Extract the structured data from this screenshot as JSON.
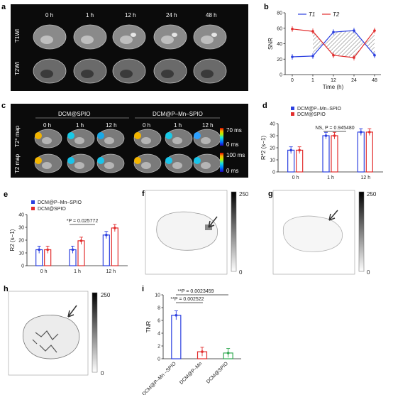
{
  "panels": {
    "a": "a",
    "b": "b",
    "c": "c",
    "d": "d",
    "e": "e",
    "f": "f",
    "g": "g",
    "h": "h",
    "i": "i"
  },
  "panel_a": {
    "times": [
      "0 h",
      "1 h",
      "12 h",
      "24 h",
      "48 h"
    ],
    "row1": "T1WI",
    "row2": "T2WI"
  },
  "panel_c": {
    "group1": "DCM@SPIO",
    "group2": "DCM@P–Mn–SPIO",
    "times": [
      "0 h",
      "1 h",
      "12 h",
      "0 h",
      "1 h",
      "12 h"
    ],
    "row1": "T2* map",
    "row2": "T2 map",
    "scale1_top": "70 ms",
    "scale1_bottom": "0 ms",
    "scale2_top": "100 ms",
    "scale2_bottom": "0 ms"
  },
  "scale_fgh": {
    "top": "250",
    "bottom": "0"
  },
  "colors": {
    "blue": "#2b3fe0",
    "red": "#e22d2d",
    "green": "#2fa84f"
  },
  "chart_data": [
    {
      "id": "b",
      "type": "line",
      "x": [
        0,
        1,
        12,
        24,
        48
      ],
      "xlabel": "Time (h)",
      "ylabel": "SNR",
      "ylim": [
        0,
        80
      ],
      "yticks": [
        0,
        20,
        40,
        60,
        80
      ],
      "series": [
        {
          "name": "T1",
          "color": "#2b3fe0",
          "values": [
            23,
            24,
            55,
            57,
            25
          ]
        },
        {
          "name": "T2",
          "color": "#e22d2d",
          "values": [
            59,
            56,
            25,
            22,
            57
          ]
        }
      ],
      "legend": "top"
    },
    {
      "id": "d",
      "type": "bar",
      "categories": [
        "0 h",
        "1 h",
        "12 h"
      ],
      "ylabel": "R*2 (s−1)",
      "ylim": [
        0,
        40
      ],
      "yticks": [
        0,
        10,
        20,
        30,
        40
      ],
      "series": [
        {
          "name": "DCM@P–Mn–SPIO",
          "color": "#2b3fe0",
          "values": [
            18,
            30,
            33
          ]
        },
        {
          "name": "DCM@SPIO",
          "color": "#e22d2d",
          "values": [
            18,
            30,
            33
          ]
        }
      ],
      "annotation": "NS, P = 0.945480"
    },
    {
      "id": "e",
      "type": "bar",
      "categories": [
        "0 h",
        "1 h",
        "12 h"
      ],
      "ylabel": "R2 (s−1)",
      "ylim": [
        0,
        40
      ],
      "yticks": [
        0,
        10,
        20,
        30,
        40
      ],
      "series": [
        {
          "name": "DCM@P–Mn–SPIO",
          "color": "#2b3fe0",
          "values": [
            12.5,
            12.5,
            24
          ]
        },
        {
          "name": "DCM@SPIO",
          "color": "#e22d2d",
          "values": [
            12.5,
            19.5,
            29.5
          ]
        }
      ],
      "annotation": "*P = 0.025772"
    },
    {
      "id": "i",
      "type": "bar",
      "categories": [
        "DCM@P–Mn –SPIO",
        "DCM@P–Mn",
        "DCM@SPIO"
      ],
      "ylabel": "TNR",
      "ylim": [
        0,
        10
      ],
      "yticks": [
        0,
        2,
        4,
        6,
        8,
        10
      ],
      "series": [
        {
          "name": "TNR",
          "colors": [
            "#2b3fe0",
            "#e22d2d",
            "#2fa84f"
          ],
          "values": [
            6.8,
            1.1,
            0.9
          ]
        }
      ],
      "annotations": [
        "**P = 0.0023459",
        "**P = 0.002522"
      ]
    }
  ]
}
